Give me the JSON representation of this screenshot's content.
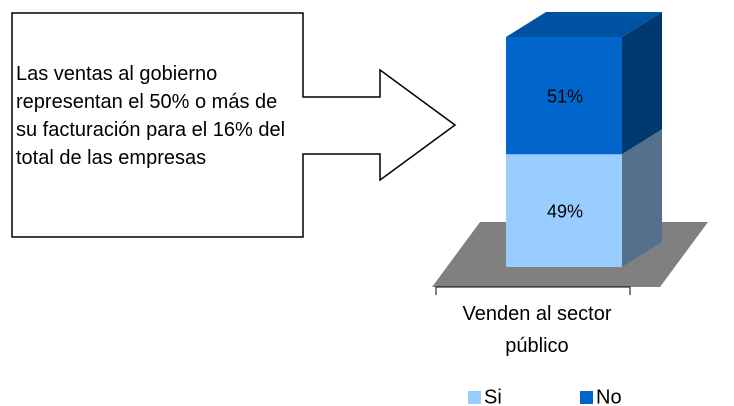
{
  "chart_data": {
    "type": "bar",
    "stacked": true,
    "three_d": true,
    "categories": [
      "Venden al sector público"
    ],
    "series": [
      {
        "name": "Si",
        "color": "#99ccff",
        "values": [
          49
        ],
        "value_labels": [
          "49%"
        ]
      },
      {
        "name": "No",
        "color": "#0066cc",
        "values": [
          51
        ],
        "value_labels": [
          "51%"
        ]
      }
    ],
    "annotation": "Las ventas al gobierno representan el 50% o más de su facturación para el 16% del total de las empresas",
    "legend": "bottom",
    "floor_color": "#808080"
  }
}
